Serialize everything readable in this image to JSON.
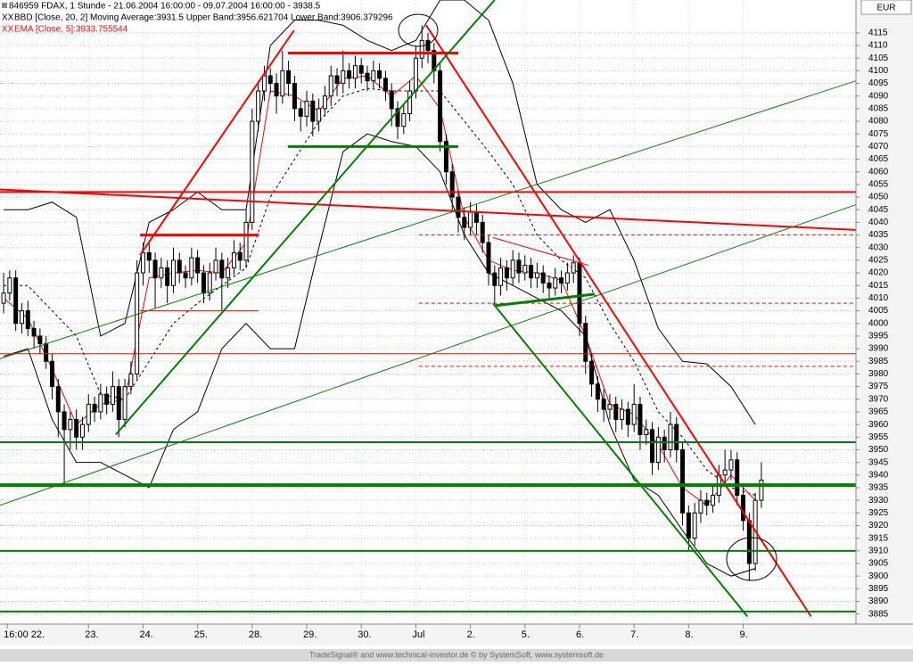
{
  "chart_data": {
    "type": "candlestick",
    "title": "846959  FDAX, 1 Stunde - 21.06.2004 16:00:00 - 09.07.2004 16:00:00 - 3938.5",
    "legend": [
      "BBD [Close, 20, 2] Moving Average:3931.5 Upper Band:3956.621704 Lower Band:3906.379296",
      "EMA [Close, 5]:3933.755544"
    ],
    "currency": "EUR",
    "footer": "TradeSignal® and www.technical-investor.de © by SystemSoft, www.systemsoft.de",
    "xlim": [
      -0.6,
      140.6
    ],
    "ylim": [
      3881,
      4128
    ],
    "xticks": [
      {
        "value": 0.6,
        "label": "16:00 22."
      },
      {
        "value": 14,
        "label": "23."
      },
      {
        "value": 23,
        "label": "24."
      },
      {
        "value": 32,
        "label": "25."
      },
      {
        "value": 41,
        "label": "28."
      },
      {
        "value": 50,
        "label": "29."
      },
      {
        "value": 59,
        "label": "30."
      },
      {
        "value": 68,
        "label": "Jul"
      },
      {
        "value": 77,
        "label": "2."
      },
      {
        "value": 86,
        "label": "5."
      },
      {
        "value": 95,
        "label": "6."
      },
      {
        "value": 104,
        "label": "7."
      },
      {
        "value": 113,
        "label": "8."
      },
      {
        "value": 122,
        "label": "9."
      }
    ],
    "yticks": [
      3885,
      3890,
      3895,
      3900,
      3905,
      3910,
      3915,
      3920,
      3925,
      3930,
      3935,
      3940,
      3945,
      3950,
      3955,
      3960,
      3965,
      3970,
      3975,
      3980,
      3985,
      3990,
      3995,
      4000,
      4005,
      4010,
      4015,
      4020,
      4025,
      4030,
      4035,
      4040,
      4045,
      4050,
      4055,
      4060,
      4065,
      4070,
      4075,
      4080,
      4085,
      4090,
      4095,
      4100,
      4105,
      4110,
      4115
    ],
    "grid": true,
    "up_color": "#ffffff",
    "down_color": "#000000",
    "open": [
      4008,
      4012,
      4018,
      4000,
      4005,
      3998,
      3995,
      3992,
      3985,
      3975,
      3965,
      3958,
      3962,
      3955,
      3960,
      3968,
      3965,
      3972,
      3968,
      3975,
      3962,
      3975,
      3980,
      4020,
      4028,
      4025,
      4018,
      4022,
      4015,
      4025,
      4020,
      4018,
      4026,
      4020,
      4012,
      4020,
      4025,
      4018,
      4022,
      4028,
      4025,
      4040,
      4080,
      4092,
      4098,
      4095,
      4090,
      4100,
      4095,
      4085,
      4082,
      4088,
      4080,
      4085,
      4090,
      4098,
      4095,
      4100,
      4097,
      4102,
      4099,
      4096,
      4100,
      4097,
      4092,
      4085,
      4078,
      4083,
      4092,
      4105,
      4112,
      4108,
      4100,
      4072,
      4060,
      4050,
      4042,
      4038,
      4044,
      4040,
      4032,
      4020,
      4015,
      4022,
      4018,
      4025,
      4020,
      4023,
      4018,
      4020,
      4016,
      4014,
      4018,
      4016,
      4020,
      4024,
      4000,
      3985,
      3976,
      3970,
      3966,
      3968,
      3962,
      3966,
      3960,
      3968,
      3956,
      3958,
      3945,
      3955,
      3950,
      3960,
      3950,
      3925,
      3915,
      3925,
      3930,
      3928,
      3932,
      3940,
      3942,
      3946,
      3932,
      3922,
      3905,
      3930
    ],
    "high": [
      4020,
      4021,
      4021,
      4008,
      4009,
      4001,
      3998,
      3995,
      3988,
      3978,
      3968,
      3965,
      3966,
      3963,
      3972,
      3971,
      3976,
      3975,
      3981,
      3978,
      3978,
      3985,
      4025,
      4032,
      4032,
      4028,
      4026,
      4025,
      4030,
      4028,
      4023,
      4030,
      4029,
      4023,
      4024,
      4030,
      4028,
      4026,
      4033,
      4032,
      4045,
      4085,
      4096,
      4102,
      4101,
      4099,
      4108,
      4104,
      4098,
      4088,
      4092,
      4091,
      4089,
      4094,
      4102,
      4101,
      4108,
      4103,
      4106,
      4105,
      4102,
      4104,
      4103,
      4100,
      4095,
      4088,
      4087,
      4096,
      4110,
      4118,
      4115,
      4111,
      4103,
      4075,
      4063,
      4053,
      4046,
      4048,
      4047,
      4043,
      4035,
      4023,
      4026,
      4025,
      4029,
      4028,
      4027,
      4026,
      4024,
      4023,
      4019,
      4022,
      4021,
      4024,
      4027,
      4026,
      4003,
      3988,
      3979,
      3974,
      3972,
      3971,
      3970,
      3969,
      3976,
      3971,
      3962,
      3961,
      3959,
      3958,
      3965,
      3963,
      3953,
      3928,
      3929,
      3934,
      3933,
      3936,
      3944,
      3950,
      3950,
      3949,
      3935,
      3925,
      3933,
      3945
    ],
    "low": [
      4004,
      4009,
      3997,
      3996,
      3995,
      3990,
      3988,
      3982,
      3970,
      3955,
      3937,
      3950,
      3950,
      3950,
      3957,
      3961,
      3962,
      3964,
      3965,
      3955,
      3959,
      3972,
      3978,
      4015,
      4020,
      4006,
      4014,
      4008,
      4012,
      4016,
      4014,
      4015,
      4016,
      4008,
      4009,
      4017,
      4005,
      4014,
      4019,
      4021,
      4022,
      4037,
      4076,
      4088,
      4091,
      4083,
      4087,
      4090,
      4080,
      4076,
      4078,
      4074,
      4076,
      4082,
      4086,
      4090,
      4091,
      4093,
      4093,
      4095,
      4092,
      4093,
      4093,
      4088,
      4078,
      4073,
      4075,
      4080,
      4089,
      4101,
      4103,
      4095,
      4068,
      4055,
      4045,
      4036,
      4033,
      4035,
      4035,
      4028,
      4015,
      4008,
      4011,
      4013,
      4015,
      4016,
      4017,
      4014,
      4014,
      4012,
      4010,
      4011,
      4012,
      4013,
      4016,
      3995,
      3980,
      3971,
      3965,
      3961,
      3962,
      3957,
      3958,
      3955,
      3957,
      3950,
      3952,
      3940,
      3942,
      3945,
      3947,
      3945,
      3920,
      3910,
      3912,
      3921,
      3924,
      3925,
      3929,
      3937,
      3938,
      3928,
      3918,
      3898,
      3902,
      3927
    ],
    "close": [
      4012,
      4018,
      4000,
      4005,
      3998,
      3995,
      3992,
      3985,
      3975,
      3965,
      3958,
      3962,
      3955,
      3960,
      3968,
      3965,
      3972,
      3968,
      3975,
      3962,
      3975,
      3980,
      4020,
      4028,
      4025,
      4018,
      4022,
      4015,
      4025,
      4020,
      4018,
      4026,
      4020,
      4012,
      4020,
      4025,
      4018,
      4022,
      4028,
      4025,
      4040,
      4080,
      4092,
      4098,
      4095,
      4090,
      4100,
      4095,
      4085,
      4082,
      4088,
      4080,
      4085,
      4090,
      4098,
      4095,
      4100,
      4097,
      4102,
      4099,
      4096,
      4100,
      4097,
      4092,
      4085,
      4078,
      4083,
      4092,
      4105,
      4112,
      4108,
      4100,
      4072,
      4060,
      4050,
      4042,
      4038,
      4044,
      4040,
      4032,
      4020,
      4015,
      4022,
      4018,
      4025,
      4020,
      4023,
      4018,
      4020,
      4016,
      4014,
      4018,
      4016,
      4020,
      4024,
      4000,
      3985,
      3976,
      3970,
      3966,
      3968,
      3962,
      3966,
      3960,
      3968,
      3956,
      3958,
      3945,
      3955,
      3950,
      3960,
      3950,
      3925,
      3915,
      3925,
      3930,
      3928,
      3932,
      3940,
      3942,
      3946,
      3932,
      3922,
      3905,
      3930,
      3938
    ],
    "indicators": {
      "x": [
        0,
        4,
        8,
        12,
        16,
        20,
        24,
        28,
        32,
        36,
        40,
        44,
        48,
        52,
        56,
        60,
        64,
        68,
        72,
        76,
        80,
        84,
        88,
        92,
        96,
        100,
        104,
        108,
        112,
        116,
        120,
        124
      ],
      "upper_band": {
        "color": "#000000",
        "values": [
          4045,
          4045,
          4048,
          4042,
          3995,
          4000,
          4040,
          4045,
          4052,
          4045,
          4045,
          4110,
          4120,
          4120,
          4118,
          4112,
          4108,
          4112,
          4128,
          4128,
          4120,
          4095,
          4055,
          4045,
          4040,
          4045,
          4025,
          3998,
          3985,
          3984,
          3975,
          3960
        ]
      },
      "lower_band": {
        "color": "#000000",
        "values": [
          3987,
          3990,
          3962,
          3945,
          3945,
          3940,
          3935,
          3958,
          3965,
          3990,
          4000,
          3990,
          3990,
          4030,
          4068,
          4075,
          4072,
          4070,
          4060,
          4035,
          4020,
          4015,
          4010,
          4005,
          3995,
          3960,
          3938,
          3932,
          3918,
          3905,
          3900,
          3903
        ]
      },
      "moving_average": {
        "color": "#000000",
        "dash": true,
        "values": [
          4015,
          4015,
          4005,
          3995,
          3972,
          3970,
          3985,
          4000,
          4008,
          4015,
          4022,
          4050,
          4065,
          4080,
          4090,
          4093,
          4092,
          4092,
          4092,
          4080,
          4068,
          4055,
          4035,
          4025,
          4018,
          4000,
          3985,
          3965,
          3955,
          3942,
          3935,
          3932
        ]
      },
      "ema": {
        "color": "#ff0000",
        "values": [
          4010,
          4002,
          3982,
          3960,
          3968,
          3970,
          4018,
          4020,
          4021,
          4020,
          4032,
          4092,
          4090,
          4084,
          4097,
          4098,
          4090,
          4098,
          4085,
          4042,
          4025,
          4021,
          4020,
          4017,
          3995,
          3968,
          3964,
          3952,
          3935,
          3928,
          3940,
          3930
        ]
      }
    },
    "trendlines": [
      {
        "color": "#ff0000",
        "width": 2,
        "x": [
          -0.6,
          140.6
        ],
        "y": [
          4052,
          4052
        ]
      },
      {
        "color": "#ff0000",
        "width": 2,
        "x": [
          -0.6,
          140.6
        ],
        "y": [
          4053,
          4037
        ]
      },
      {
        "color": "#ff0000",
        "width": 2,
        "x": [
          22.5,
          47.9
        ],
        "y": [
          4027,
          4116
        ]
      },
      {
        "color": "#ff0000",
        "width": 3,
        "x": [
          22.5,
          42.1
        ],
        "y": [
          4035,
          4035
        ]
      },
      {
        "color": "#ff0000",
        "width": 3,
        "x": [
          46.9,
          75
        ],
        "y": [
          4107,
          4107
        ]
      },
      {
        "color": "#ff0000",
        "width": 2,
        "x": [
          69.7,
          133.2
        ],
        "y": [
          4118,
          3884
        ]
      },
      {
        "color": "#ff0000",
        "width": 2,
        "x": [
          118.2,
          133.2
        ],
        "y": [
          3953,
          3953
        ]
      },
      {
        "color": "#ff0000",
        "width": 1,
        "x": [
          -0.6,
          140.6
        ],
        "y": [
          3988,
          3988
        ]
      },
      {
        "color": "#ff0000",
        "width": 1,
        "dash": true,
        "x": [
          68.5,
          140.6
        ],
        "y": [
          4035,
          4035
        ]
      },
      {
        "color": "#ff0000",
        "width": 1,
        "dash": true,
        "x": [
          68.5,
          140.6
        ],
        "y": [
          4008,
          4008
        ]
      },
      {
        "color": "#ff0000",
        "width": 1,
        "dash": true,
        "x": [
          68.5,
          140.6
        ],
        "y": [
          3983,
          3983
        ]
      },
      {
        "color": "#ff0000",
        "width": 1,
        "x": [
          22.5,
          42.1
        ],
        "y": [
          4005,
          4005
        ]
      },
      {
        "color": "#ff0000",
        "width": 1,
        "x": [
          80.7,
          96.5
        ],
        "y": [
          4034,
          4023
        ]
      },
      {
        "color": "#008000",
        "width": 3,
        "x": [
          46.9,
          75
        ],
        "y": [
          4070,
          4070
        ]
      },
      {
        "color": "#008000",
        "width": 2,
        "x": [
          18.5,
          81
        ],
        "y": [
          3956,
          4128
        ]
      },
      {
        "color": "#008000",
        "width": 1,
        "x": [
          -0.6,
          140.6
        ],
        "y": [
          3986,
          4096
        ]
      },
      {
        "color": "#008000",
        "width": 1,
        "x": [
          -0.6,
          140.6
        ],
        "y": [
          3928,
          4047
        ]
      },
      {
        "color": "#008000",
        "width": 2,
        "x": [
          80.7,
          122.7
        ],
        "y": [
          4008,
          3884
        ]
      },
      {
        "color": "#008000",
        "width": 3,
        "x": [
          81,
          97.5
        ],
        "y": [
          4007,
          4011.6
        ]
      },
      {
        "color": "#008000",
        "width": 2,
        "x": [
          -0.6,
          140.6
        ],
        "y": [
          3953,
          3953
        ]
      },
      {
        "color": "#008000",
        "width": 4,
        "x": [
          -0.6,
          140.6
        ],
        "y": [
          3936,
          3936
        ]
      },
      {
        "color": "#008000",
        "width": 2,
        "x": [
          -0.6,
          140.6
        ],
        "y": [
          3910,
          3910
        ]
      },
      {
        "color": "#008000",
        "width": 2,
        "x": [
          -0.6,
          140.6
        ],
        "y": [
          3886,
          3886
        ]
      }
    ]
  }
}
